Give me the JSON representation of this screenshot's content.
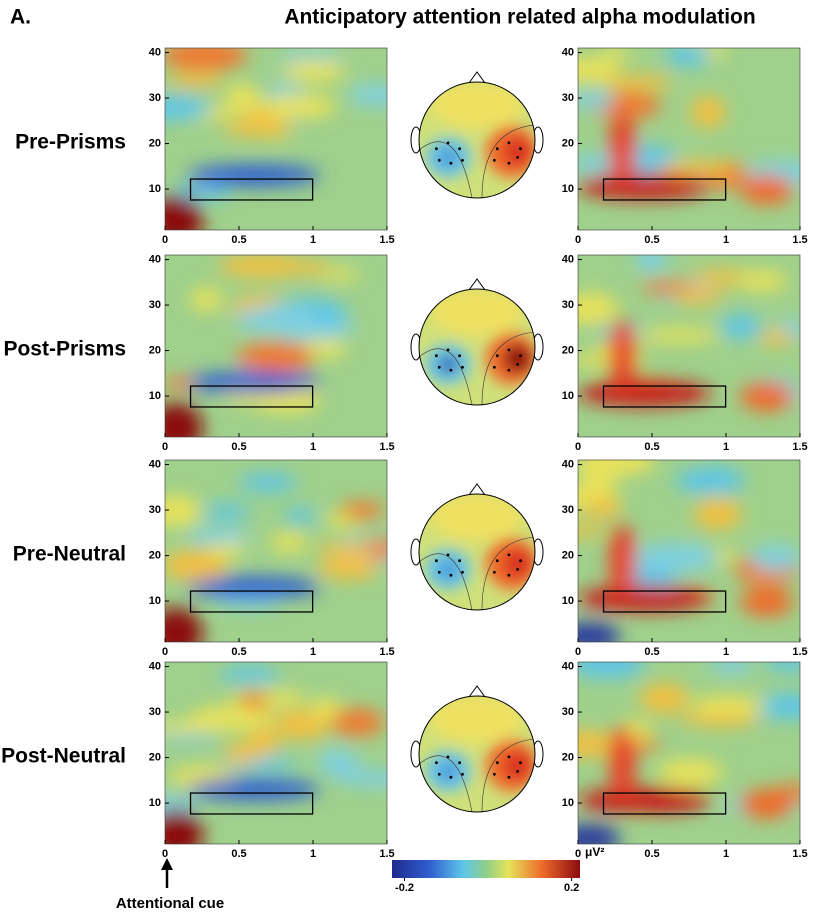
{
  "panel_label": "A.",
  "title": "Anticipatory attention related alpha modulation",
  "rows": [
    {
      "label": "Pre-Prisms"
    },
    {
      "label": "Post-Prisms"
    },
    {
      "label": "Pre-Neutral"
    },
    {
      "label": "Post-Neutral"
    }
  ],
  "axes": {
    "xlim": [
      0,
      1.5
    ],
    "ylim": [
      1,
      41
    ],
    "xticks": [
      0,
      0.5,
      1,
      1.5
    ],
    "yticks": [
      10,
      20,
      30,
      40
    ]
  },
  "colorbar": {
    "lim": [
      -0.23,
      0.22
    ],
    "ticks": [
      -0.2,
      0.2
    ],
    "unit": "μV²"
  },
  "annotation": "Attentional cue"
}
